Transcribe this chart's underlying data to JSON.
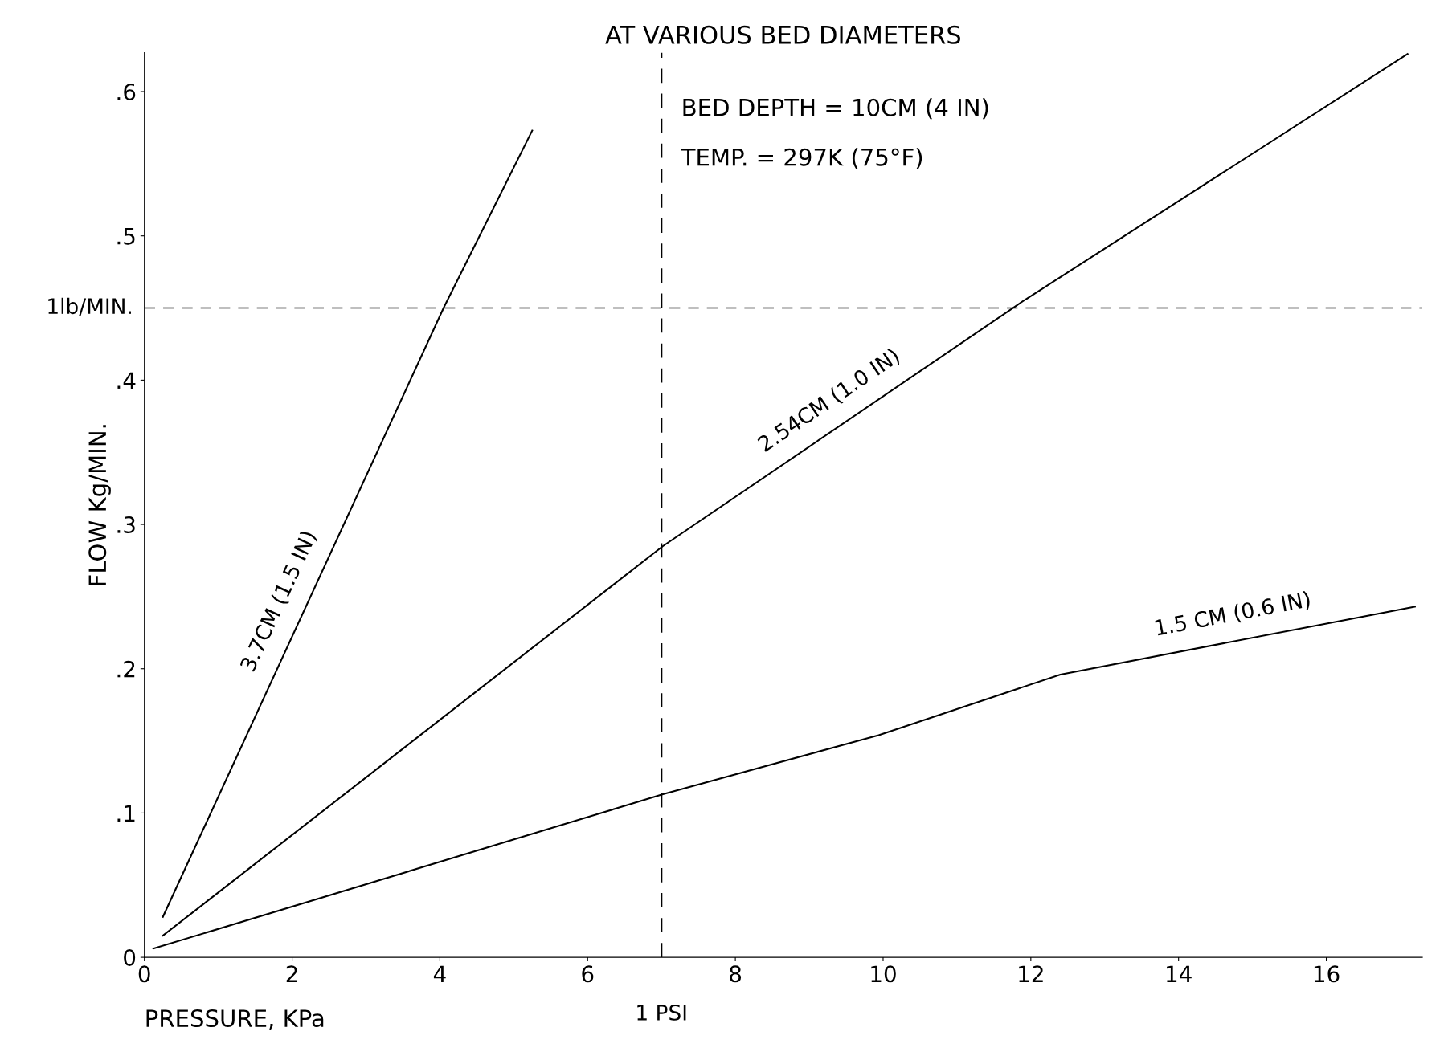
{
  "chart_data": {
    "type": "line",
    "title": "AT VARIOUS BED DIAMETERS",
    "xlabel": "PRESSURE, KPa",
    "ylabel": "FLOW Kg/MIN.",
    "series": [
      {
        "name": "3.7CM (1.5 IN)",
        "color": "#000000",
        "x": [
          0.25,
          4.05,
          5.25
        ],
        "values": [
          0.028,
          0.45,
          0.573
        ]
      },
      {
        "name": "2.54CM (1.0 IN)",
        "color": "#000000",
        "x": [
          0.25,
          7.02,
          11.93,
          17.1
        ],
        "values": [
          0.015,
          0.285,
          0.456,
          0.626
        ]
      },
      {
        "name": "1.5 CM (0.6 IN)",
        "color": "#000000",
        "x": [
          0.12,
          7.02,
          9.94,
          12.4,
          17.2
        ],
        "values": [
          0.006,
          0.113,
          0.154,
          0.196,
          0.243
        ]
      }
    ],
    "xlim": [
      0,
      17.3
    ],
    "ylim": [
      0,
      0.627
    ],
    "xticks": [
      0,
      2,
      4,
      6,
      8,
      10,
      12,
      14,
      16
    ],
    "yticks": [
      {
        "value": 0,
        "label": "0"
      },
      {
        "value": 0.1,
        "label": ".1"
      },
      {
        "value": 0.2,
        "label": ".2"
      },
      {
        "value": 0.3,
        "label": ".3"
      },
      {
        "value": 0.4,
        "label": ".4"
      },
      {
        "value": 0.5,
        "label": ".5"
      },
      {
        "value": 0.6,
        "label": ".6"
      }
    ],
    "ref_lines": [
      {
        "axis": "y",
        "value": 0.45,
        "label": "1lb/MIN.",
        "line_style": "dashed",
        "color": "#000000"
      },
      {
        "axis": "x",
        "value": 7.0,
        "label": "1 PSI",
        "line_style": "dashed",
        "color": "#000000"
      }
    ],
    "annotations": [
      "BED DEPTH = 10CM (4 IN)",
      "TEMP. = 297K (75°F)"
    ],
    "grid": false,
    "legend": false,
    "marker": "none",
    "line_style": "solid"
  }
}
